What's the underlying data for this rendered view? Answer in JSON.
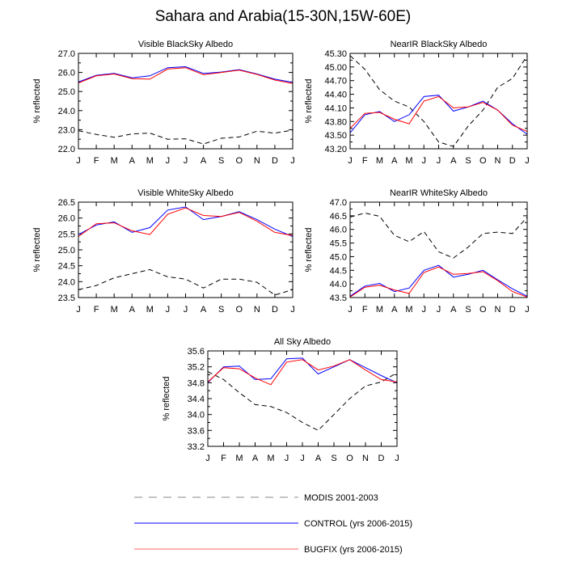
{
  "title": "Sahara and Arabia(15-30N,15W-60E)",
  "colors": {
    "modis": "#000000",
    "control": "#0000ff",
    "bugfix": "#ff0000",
    "legend_modis": "#888888",
    "legend_control": "#0000ff",
    "legend_bugfix": "#ff6666"
  },
  "legend": {
    "modis": "MODIS 2001-2003",
    "control": "CONTROL (yrs 2006-2015)",
    "bugfix": "BUGFIX (yrs 2006-2015)"
  },
  "chart_data": [
    {
      "type": "line",
      "title": "Visible BlackSky Albedo",
      "ylabel": "% reflected",
      "categories": [
        "J",
        "F",
        "M",
        "A",
        "M",
        "J",
        "J",
        "A",
        "S",
        "O",
        "N",
        "D",
        "J"
      ],
      "ylim": [
        22.0,
        27.0
      ],
      "yticks": [
        "22.0",
        "23.0",
        "24.0",
        "25.0",
        "26.0",
        "27.0"
      ],
      "series": [
        {
          "name": "MODIS 2001-2003",
          "values": [
            22.95,
            22.75,
            22.6,
            22.78,
            22.82,
            22.5,
            22.52,
            22.25,
            22.55,
            22.62,
            22.92,
            22.82,
            22.98
          ]
        },
        {
          "name": "CONTROL (yrs 2006-2015)",
          "values": [
            25.5,
            25.85,
            25.95,
            25.72,
            25.82,
            26.25,
            26.3,
            25.95,
            26.02,
            26.15,
            25.92,
            25.65,
            25.48
          ]
        },
        {
          "name": "BUGFIX (yrs 2006-2015)",
          "values": [
            25.45,
            25.82,
            25.92,
            25.68,
            25.65,
            26.18,
            26.25,
            25.88,
            26.0,
            26.12,
            25.9,
            25.6,
            25.42
          ]
        }
      ]
    },
    {
      "type": "line",
      "title": "NearIR BlackSky Albedo",
      "ylabel": "% reflected",
      "categories": [
        "J",
        "F",
        "M",
        "A",
        "M",
        "J",
        "J",
        "A",
        "S",
        "O",
        "N",
        "D",
        "J"
      ],
      "ylim": [
        43.2,
        45.3
      ],
      "yticks": [
        "43.20",
        "43.50",
        "43.80",
        "44.10",
        "44.40",
        "44.70",
        "45.00",
        "45.30"
      ],
      "series": [
        {
          "name": "MODIS 2001-2003",
          "values": [
            45.25,
            44.95,
            44.5,
            44.25,
            44.12,
            43.8,
            43.35,
            43.25,
            43.7,
            44.05,
            44.55,
            44.75,
            45.25
          ]
        },
        {
          "name": "CONTROL (yrs 2006-2015)",
          "values": [
            43.55,
            43.95,
            44.02,
            43.8,
            43.95,
            44.35,
            44.38,
            44.03,
            44.12,
            44.25,
            44.05,
            43.75,
            43.52
          ]
        },
        {
          "name": "BUGFIX (yrs 2006-2015)",
          "values": [
            43.65,
            43.98,
            44.0,
            43.85,
            43.75,
            44.25,
            44.35,
            44.1,
            44.12,
            44.22,
            44.05,
            43.72,
            43.58
          ]
        }
      ]
    },
    {
      "type": "line",
      "title": "Visible WhiteSky Albedo",
      "ylabel": "% reflected",
      "categories": [
        "J",
        "F",
        "M",
        "A",
        "M",
        "J",
        "J",
        "A",
        "S",
        "O",
        "N",
        "D",
        "J"
      ],
      "ylim": [
        23.5,
        26.5
      ],
      "yticks": [
        "23.5",
        "24.0",
        "24.5",
        "25.0",
        "25.5",
        "26.0",
        "26.5"
      ],
      "series": [
        {
          "name": "MODIS 2001-2003",
          "values": [
            23.75,
            23.88,
            24.12,
            24.25,
            24.38,
            24.15,
            24.08,
            23.8,
            24.08,
            24.08,
            23.98,
            23.58,
            23.75
          ]
        },
        {
          "name": "CONTROL (yrs 2006-2015)",
          "values": [
            25.48,
            25.78,
            25.88,
            25.55,
            25.7,
            26.25,
            26.35,
            25.95,
            26.05,
            26.2,
            25.95,
            25.65,
            25.42
          ]
        },
        {
          "name": "BUGFIX (yrs 2006-2015)",
          "values": [
            25.42,
            25.82,
            25.85,
            25.6,
            25.48,
            26.12,
            26.32,
            26.08,
            26.05,
            26.18,
            25.9,
            25.55,
            25.45
          ]
        }
      ]
    },
    {
      "type": "line",
      "title": "NearIR WhiteSky Albedo",
      "ylabel": "% reflected",
      "categories": [
        "J",
        "F",
        "M",
        "A",
        "M",
        "J",
        "J",
        "A",
        "S",
        "O",
        "N",
        "D",
        "J"
      ],
      "ylim": [
        43.5,
        47.0
      ],
      "yticks": [
        "43.5",
        "44.0",
        "44.5",
        "45.0",
        "45.5",
        "46.0",
        "46.5",
        "47.0"
      ],
      "series": [
        {
          "name": "MODIS 2001-2003",
          "values": [
            46.45,
            46.6,
            46.48,
            45.78,
            45.55,
            45.92,
            45.18,
            44.95,
            45.35,
            45.85,
            45.9,
            45.85,
            46.45
          ]
        },
        {
          "name": "CONTROL (yrs 2006-2015)",
          "values": [
            43.55,
            43.92,
            44.02,
            43.72,
            43.85,
            44.5,
            44.68,
            44.25,
            44.35,
            44.5,
            44.15,
            43.82,
            43.55
          ]
        },
        {
          "name": "BUGFIX (yrs 2006-2015)",
          "values": [
            43.52,
            43.88,
            43.95,
            43.78,
            43.65,
            44.42,
            44.62,
            44.35,
            44.38,
            44.45,
            44.12,
            43.72,
            43.52
          ]
        }
      ]
    },
    {
      "type": "line",
      "title": "All Sky Albedo",
      "ylabel": "% reflected",
      "categories": [
        "J",
        "F",
        "M",
        "A",
        "M",
        "J",
        "J",
        "A",
        "S",
        "O",
        "N",
        "D",
        "J"
      ],
      "ylim": [
        33.2,
        35.6
      ],
      "yticks": [
        "33.2",
        "33.6",
        "34.0",
        "34.4",
        "34.8",
        "35.2",
        "35.6"
      ],
      "series": [
        {
          "name": "MODIS 2001-2003",
          "values": [
            35.08,
            34.88,
            34.55,
            34.25,
            34.2,
            34.05,
            33.8,
            33.6,
            34.0,
            34.4,
            34.72,
            34.82,
            35.05
          ]
        },
        {
          "name": "CONTROL (yrs 2006-2015)",
          "values": [
            34.8,
            35.2,
            35.22,
            34.88,
            34.9,
            35.4,
            35.42,
            35.02,
            35.2,
            35.38,
            35.18,
            34.98,
            34.8
          ]
        },
        {
          "name": "BUGFIX (yrs 2006-2015)",
          "values": [
            34.82,
            35.18,
            35.15,
            34.92,
            34.75,
            35.32,
            35.38,
            35.12,
            35.22,
            35.38,
            35.12,
            34.88,
            34.82
          ]
        }
      ]
    }
  ]
}
